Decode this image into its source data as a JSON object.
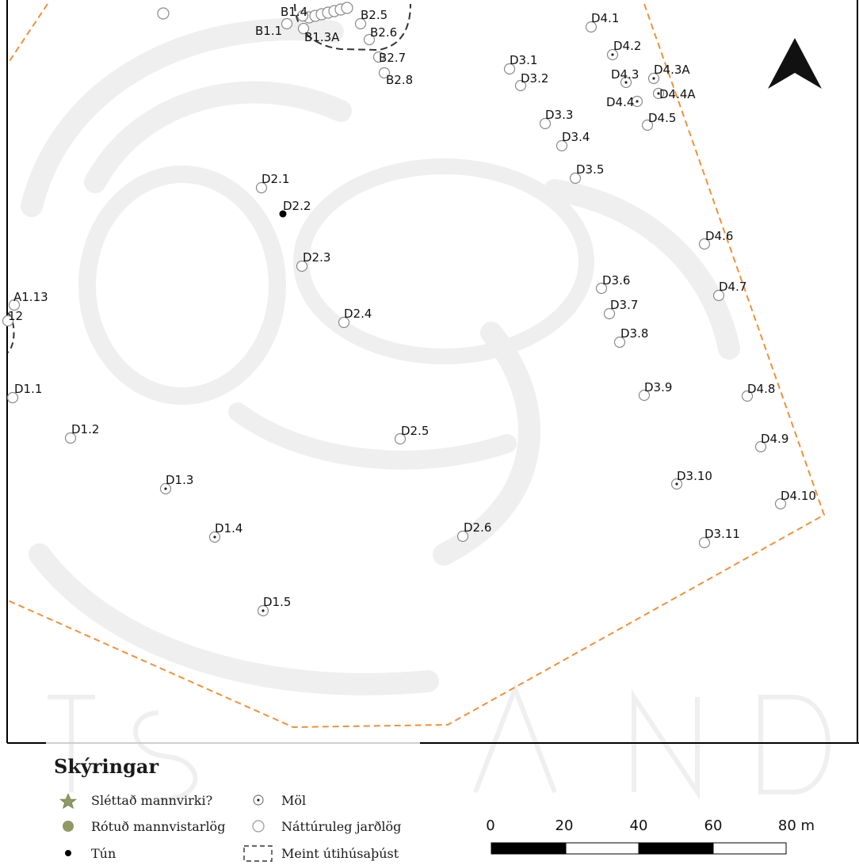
{
  "colors": {
    "boundary": "#f0913a",
    "marker_stroke": "#8a8a8a",
    "tun_fill": "#000000",
    "rotud_fill": "#8d9a62",
    "slettad_fill": "#8d9a62",
    "watermark": "#ececec"
  },
  "north_arrow": {
    "icon": "north-arrow-icon"
  },
  "points": [
    {
      "label": "B1.1",
      "type": "natturuleg"
    },
    {
      "label": "B1.3A",
      "type": "natturuleg"
    },
    {
      "label": "B1.4",
      "type": "natturuleg"
    },
    {
      "label": "B2.5",
      "type": "natturuleg"
    },
    {
      "label": "B2.6",
      "type": "natturuleg"
    },
    {
      "label": "B2.7",
      "type": "natturuleg"
    },
    {
      "label": "B2.8",
      "type": "natturuleg"
    },
    {
      "label": "D1.1",
      "type": "natturuleg"
    },
    {
      "label": "D1.2",
      "type": "natturuleg"
    },
    {
      "label": "D1.3",
      "type": "mol"
    },
    {
      "label": "D1.4",
      "type": "mol"
    },
    {
      "label": "D1.5",
      "type": "mol"
    },
    {
      "label": "D2.1",
      "type": "natturuleg"
    },
    {
      "label": "D2.2",
      "type": "tun"
    },
    {
      "label": "D2.3",
      "type": "natturuleg"
    },
    {
      "label": "D2.4",
      "type": "natturuleg"
    },
    {
      "label": "D2.5",
      "type": "natturuleg"
    },
    {
      "label": "D2.6",
      "type": "natturuleg"
    },
    {
      "label": "D3.1",
      "type": "natturuleg"
    },
    {
      "label": "D3.2",
      "type": "natturuleg"
    },
    {
      "label": "D3.3",
      "type": "natturuleg"
    },
    {
      "label": "D3.4",
      "type": "natturuleg"
    },
    {
      "label": "D3.5",
      "type": "natturuleg"
    },
    {
      "label": "D3.6",
      "type": "natturuleg"
    },
    {
      "label": "D3.7",
      "type": "natturuleg"
    },
    {
      "label": "D3.8",
      "type": "natturuleg"
    },
    {
      "label": "D3.9",
      "type": "natturuleg"
    },
    {
      "label": "D3.10",
      "type": "mol"
    },
    {
      "label": "D3.11",
      "type": "natturuleg"
    },
    {
      "label": "D4.1",
      "type": "natturuleg"
    },
    {
      "label": "D4.2",
      "type": "mol"
    },
    {
      "label": "D4.3",
      "type": "mol"
    },
    {
      "label": "D4.3A",
      "type": "mol"
    },
    {
      "label": "D4.4",
      "type": "mol"
    },
    {
      "label": "D4.4A",
      "type": "mol"
    },
    {
      "label": "D4.5",
      "type": "natturuleg"
    },
    {
      "label": "D4.6",
      "type": "natturuleg"
    },
    {
      "label": "D4.7",
      "type": "natturuleg"
    },
    {
      "label": "D4.8",
      "type": "natturuleg"
    },
    {
      "label": "D4.9",
      "type": "natturuleg"
    },
    {
      "label": "D4.10",
      "type": "natturuleg"
    },
    {
      "label": "A1.13",
      "type": "natturuleg"
    },
    {
      "label": "12",
      "type": "natturuleg"
    }
  ],
  "legend": {
    "title": "Skýringar",
    "items": [
      {
        "label": "Sléttað mannvirki?",
        "icon": "star-icon"
      },
      {
        "label": "Rótuð mannvistarlög",
        "icon": "filled-circle-icon"
      },
      {
        "label": "Tún",
        "icon": "small-dot-icon"
      },
      {
        "label": "Möl",
        "icon": "dotted-circle-icon"
      },
      {
        "label": "Náttúruleg jarðlög",
        "icon": "open-circle-icon"
      },
      {
        "label": "Meint útihúsaþúst",
        "icon": "dashed-box-icon"
      }
    ]
  },
  "scale_bar": {
    "ticks": [
      "0",
      "20",
      "40",
      "60",
      "80 m"
    ]
  }
}
